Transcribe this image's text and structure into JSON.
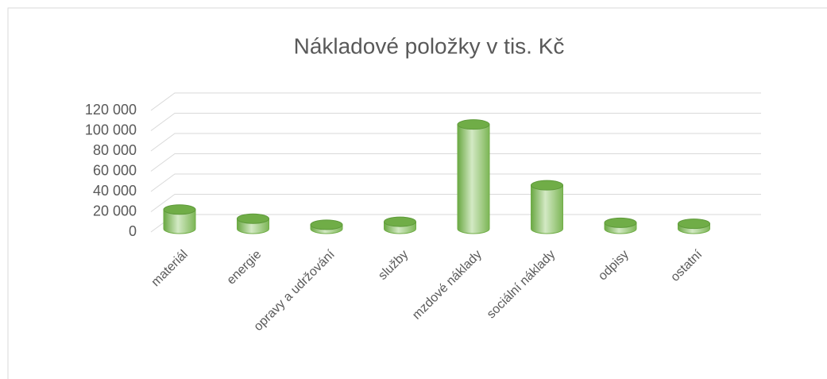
{
  "chart_data": {
    "type": "bar3d",
    "title": "Nákladové položky v tis. Kč",
    "categories": [
      "materiál",
      "energie",
      "opravy a udržování",
      "služby",
      "mzdové náklady",
      "sociální náklady",
      "odpisy",
      "ostatní"
    ],
    "values": [
      19000,
      10000,
      4000,
      7000,
      103000,
      43000,
      6000,
      5000
    ],
    "color": "#70ad47",
    "ylim": [
      0,
      120000
    ],
    "yticks": [
      {
        "value": 0,
        "label": "0"
      },
      {
        "value": 20000,
        "label": "20 000"
      },
      {
        "value": 40000,
        "label": "40 000"
      },
      {
        "value": 60000,
        "label": "60 000"
      },
      {
        "value": 80000,
        "label": "80 000"
      },
      {
        "value": 100000,
        "label": "100 000"
      },
      {
        "value": 120000,
        "label": "120 000"
      }
    ],
    "grid": true
  }
}
